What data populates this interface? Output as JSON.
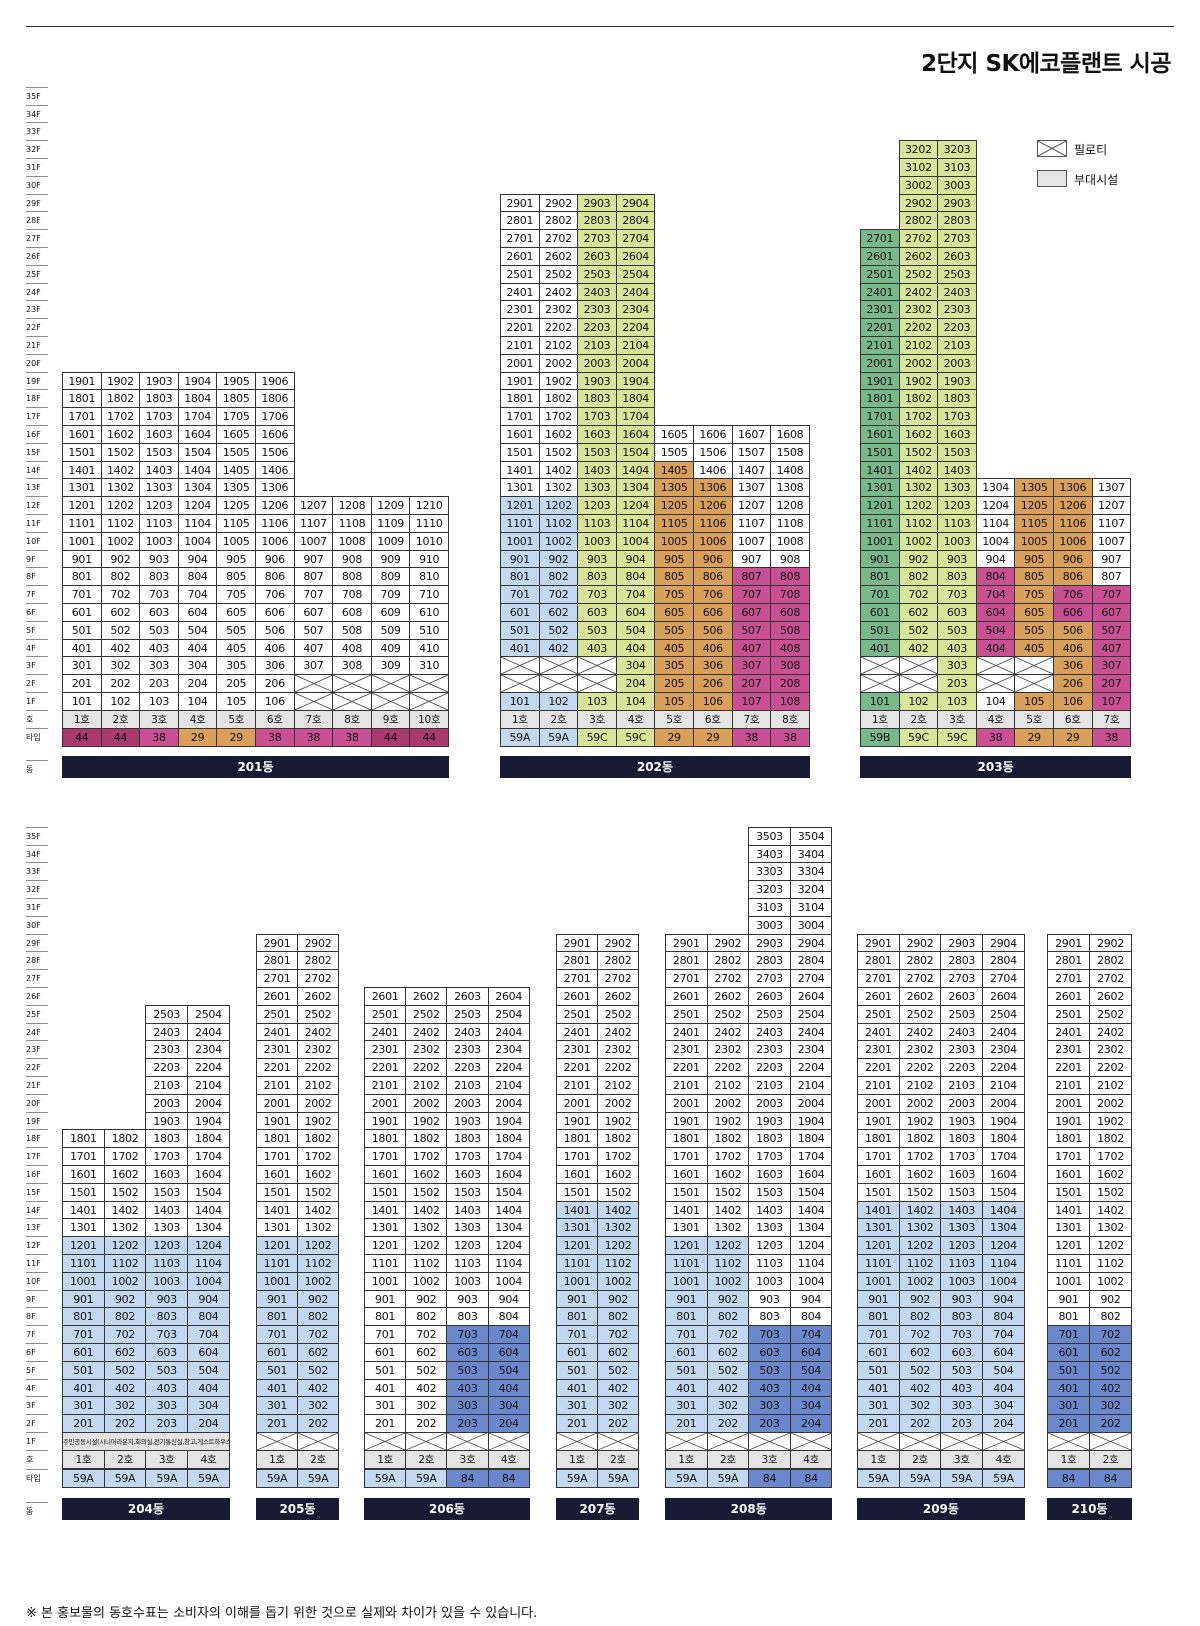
{
  "title": "2단지 SK에코플랜트 시공",
  "legend": {
    "piloti": "필로티",
    "facility": "부대시설"
  },
  "row_labels": {
    "ho": "호",
    "type": "타입",
    "dong": "동"
  },
  "footnote": "※ 본 홍보물의 동호수표는 소비자의 이해를 돕기 위한 것으로 실제와 차이가 있을 수 있습니다.",
  "colors": {
    "white": "#ffffff",
    "gray": "#e4e4e4",
    "t44": "#a83a6e",
    "t38": "#c85093",
    "t29": "#d8a05a",
    "t59C": "#d9e69a",
    "t59A": "#c3d9f1",
    "t59B": "#78b88a",
    "t84": "#6b88cc",
    "bar": "#181a33"
  },
  "type_cell_colors": {
    "44": "#a83a6e",
    "38": "#c85093",
    "29": "#d8a05a",
    "59A": "#c3d9f1",
    "59B": "#78b88a",
    "59C": "#d9e69a",
    "84": "#6b88cc"
  },
  "buildings": [
    {
      "dong": "201동",
      "cols": 10,
      "heights": [
        19,
        19,
        19,
        19,
        19,
        19,
        12,
        12,
        12,
        12
      ],
      "piloti": [
        [
          0,
          0,
          0,
          0,
          0,
          0,
          1,
          1,
          1,
          1
        ],
        [
          0,
          0,
          0,
          0,
          0,
          0,
          1,
          1,
          1,
          1
        ]
      ],
      "ho": [
        "1호",
        "2호",
        "3호",
        "4호",
        "5호",
        "6호",
        "7호",
        "8호",
        "9호",
        "10호"
      ],
      "types": [
        "44",
        "44",
        "38",
        "29",
        "29",
        "38",
        "38",
        "38",
        "44",
        "44"
      ],
      "color_cols": [
        "white",
        "white",
        "white",
        "white",
        "white",
        "white",
        "white",
        "white",
        "white",
        "white"
      ]
    },
    {
      "dong": "202동",
      "cols": 8,
      "heights": [
        29,
        29,
        29,
        29,
        16,
        16,
        16,
        16
      ],
      "piloti": [
        [
          0,
          0,
          0,
          0,
          0,
          0,
          0,
          0
        ],
        [
          1,
          1,
          1,
          0,
          0,
          0,
          0,
          0
        ],
        [
          1,
          1,
          1,
          0,
          0,
          0,
          0,
          0
        ]
      ],
      "ho": [
        "1호",
        "2호",
        "3호",
        "4호",
        "5호",
        "6호",
        "7호",
        "8호"
      ],
      "types": [
        "59A",
        "59A",
        "59C",
        "59C",
        "29",
        "29",
        "38",
        "38"
      ],
      "color_cols": [
        "white",
        "white",
        "white",
        "white",
        "white",
        "white",
        "white",
        "white"
      ]
    },
    {
      "dong": "203동",
      "cols": 7,
      "heights": [
        27,
        32,
        32,
        13,
        13,
        13,
        13
      ],
      "piloti": [
        [
          0,
          0,
          0,
          0,
          0,
          0,
          0
        ],
        [
          1,
          1,
          0,
          1,
          1,
          0,
          0
        ],
        [
          1,
          1,
          0,
          1,
          1,
          0,
          0
        ]
      ],
      "ho": [
        "1호",
        "2호",
        "3호",
        "4호",
        "5호",
        "6호",
        "7호"
      ],
      "types": [
        "59B",
        "59C",
        "59C",
        "38",
        "29",
        "29",
        "38"
      ],
      "color_cols": [
        "white",
        "white",
        "white",
        "white",
        "white",
        "white",
        "white"
      ]
    },
    {
      "dong": "204동",
      "cols": 4,
      "heights": [
        18,
        18,
        25,
        25
      ],
      "piloti": [],
      "facility": "주민공동시설(시니어라운지,회의실,전기통신실,창고,게스트하우스)",
      "ho": [
        "1호",
        "2호",
        "3호",
        "4호"
      ],
      "types": [
        "59A",
        "59A",
        "59A",
        "59A"
      ],
      "color_cols": [
        "white",
        "white",
        "white",
        "white"
      ]
    },
    {
      "dong": "205동",
      "cols": 2,
      "heights": [
        29,
        29
      ],
      "piloti": [
        [
          1,
          1
        ]
      ],
      "ho": [
        "1호",
        "2호"
      ],
      "types": [
        "59A",
        "59A"
      ],
      "color_cols": [
        "white",
        "white"
      ]
    },
    {
      "dong": "206동",
      "cols": 4,
      "heights": [
        26,
        26,
        26,
        26
      ],
      "piloti": [
        [
          1,
          1,
          1,
          1
        ]
      ],
      "ho": [
        "1호",
        "2호",
        "3호",
        "4호"
      ],
      "types": [
        "59A",
        "59A",
        "84",
        "84"
      ],
      "color_cols": [
        "white",
        "white",
        "white",
        "white"
      ]
    },
    {
      "dong": "207동",
      "cols": 2,
      "heights": [
        29,
        29
      ],
      "piloti": [
        [
          1,
          1
        ]
      ],
      "ho": [
        "1호",
        "2호"
      ],
      "types": [
        "59A",
        "59A"
      ],
      "color_cols": [
        "white",
        "white"
      ]
    },
    {
      "dong": "208동",
      "cols": 4,
      "heights": [
        29,
        29,
        35,
        35
      ],
      "piloti": [
        [
          1,
          1,
          1,
          1
        ]
      ],
      "ho": [
        "1호",
        "2호",
        "3호",
        "4호"
      ],
      "types": [
        "59A",
        "59A",
        "84",
        "84"
      ],
      "color_cols": [
        "white",
        "white",
        "white",
        "white"
      ]
    },
    {
      "dong": "209동",
      "cols": 4,
      "heights": [
        29,
        29,
        29,
        29
      ],
      "piloti": [
        [
          1,
          1,
          1,
          1
        ]
      ],
      "ho": [
        "1호",
        "2호",
        "3호",
        "4호"
      ],
      "types": [
        "59A",
        "59A",
        "59A",
        "59A"
      ],
      "color_cols": [
        "white",
        "white",
        "white",
        "white"
      ]
    },
    {
      "dong": "210동",
      "cols": 2,
      "heights": [
        29,
        29
      ],
      "piloti": [
        [
          1,
          1
        ]
      ],
      "ho": [
        "1호",
        "2호"
      ],
      "types": [
        "84",
        "84"
      ],
      "color_cols": [
        "white",
        "white"
      ]
    }
  ]
}
